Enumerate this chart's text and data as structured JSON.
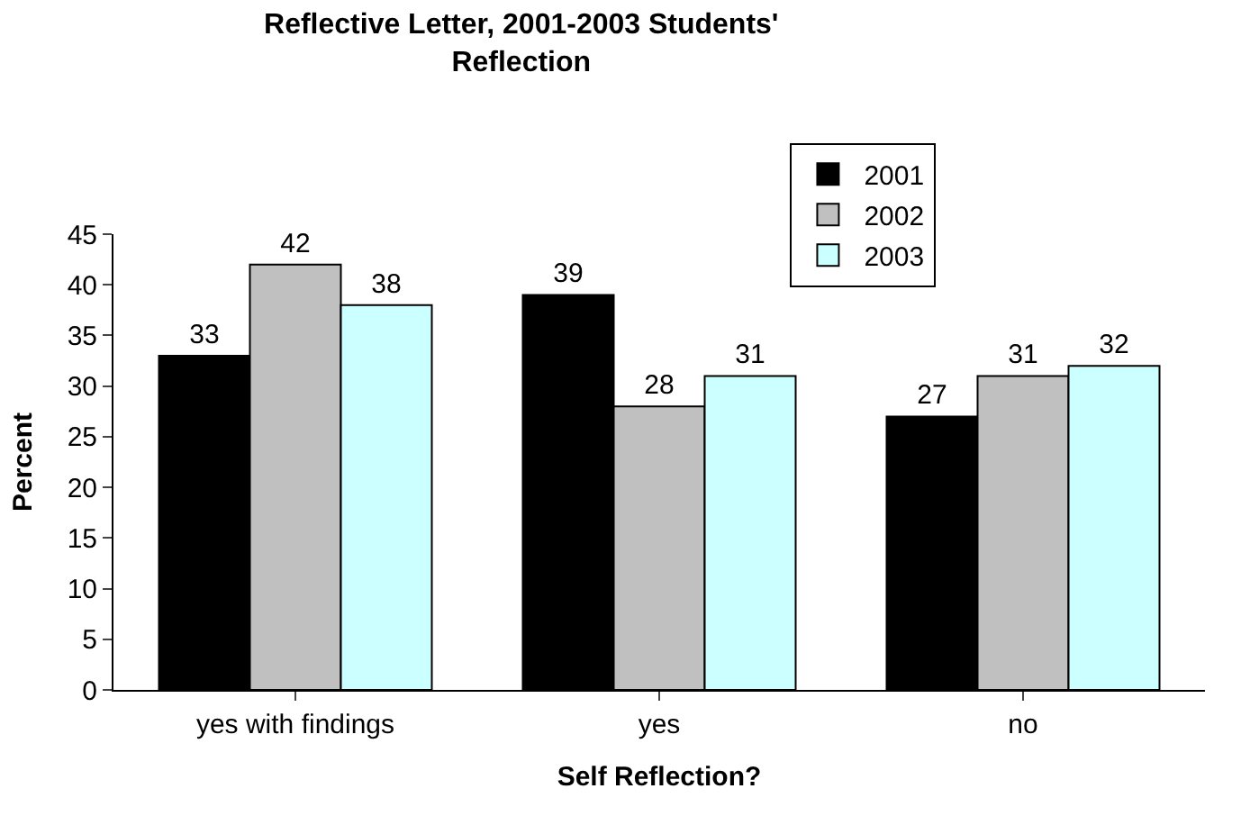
{
  "chart_data": {
    "type": "bar",
    "title": "Reflective Letter, 2001-2003 Students' Reflection",
    "xlabel": "Self Reflection?",
    "ylabel": "Percent",
    "categories": [
      "yes with findings",
      "yes",
      "no"
    ],
    "series": [
      {
        "name": "2001",
        "color": "#000000",
        "values": [
          33,
          39,
          27
        ]
      },
      {
        "name": "2002",
        "color": "#c0c0c0",
        "values": [
          42,
          28,
          31
        ]
      },
      {
        "name": "2003",
        "color": "#ccffff",
        "values": [
          38,
          31,
          32
        ]
      }
    ],
    "ylim": [
      0,
      45
    ],
    "yticks": [
      0,
      5,
      10,
      15,
      20,
      25,
      30,
      35,
      40,
      45
    ],
    "data_labels": true,
    "legend": "top right"
  }
}
